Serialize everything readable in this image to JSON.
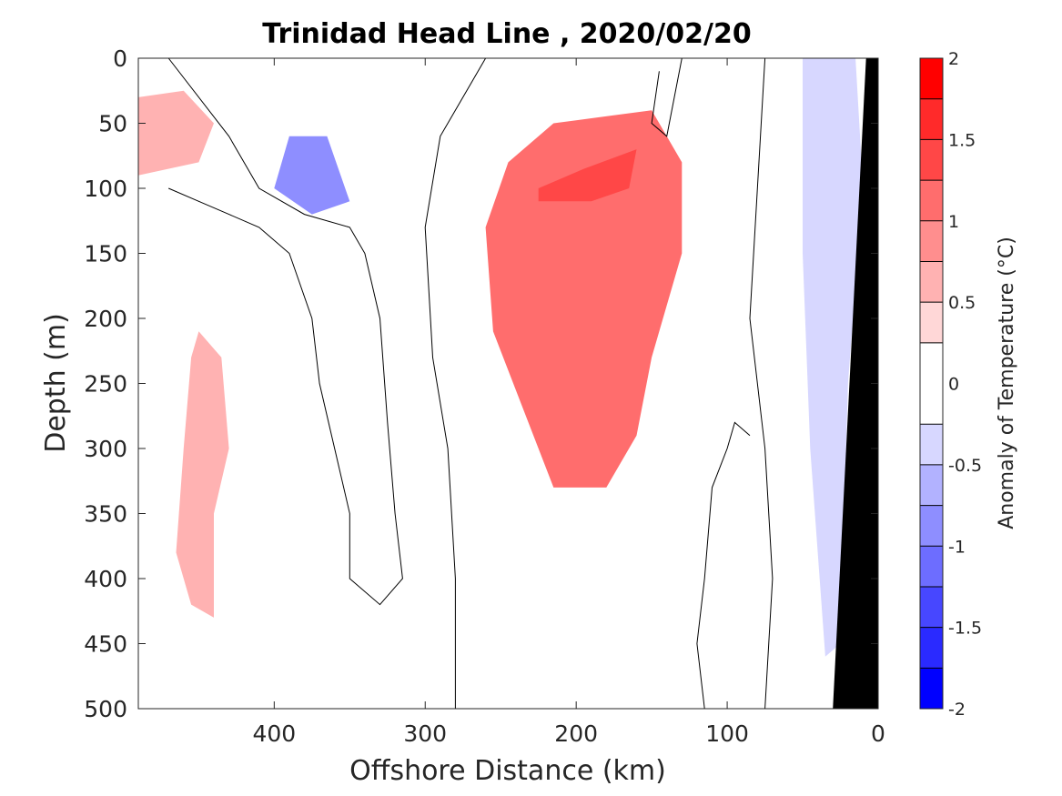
{
  "chart_data": {
    "type": "contour",
    "title": "Trinidad Head Line , 2020/02/20",
    "xlabel": "Offshore Distance (km)",
    "ylabel": "Depth (m)",
    "xlim": [
      490,
      0
    ],
    "ylim": [
      0,
      500
    ],
    "x_reversed": true,
    "y_reversed": true,
    "xticks": [
      400,
      300,
      200,
      100,
      0
    ],
    "xtick_labels": [
      "400",
      "300",
      "200",
      "100",
      "0"
    ],
    "yticks": [
      0,
      50,
      100,
      150,
      200,
      250,
      300,
      350,
      400,
      450,
      500
    ],
    "ytick_labels": [
      "0",
      "50",
      "100",
      "150",
      "200",
      "250",
      "300",
      "350",
      "400",
      "450",
      "500"
    ],
    "colorbar": {
      "label": "Anomaly of Temperature (°C)",
      "limits": [
        -2,
        2
      ],
      "levels": [
        -2,
        -1.75,
        -1.5,
        -1.25,
        -1,
        -0.75,
        -0.5,
        -0.25,
        0.25,
        0.5,
        0.75,
        1,
        1.25,
        1.5,
        1.75,
        2
      ],
      "tick_values": [
        2,
        1.5,
        1,
        0.5,
        0,
        -0.5,
        -1,
        -1.5,
        -2
      ],
      "tick_labels": [
        "2",
        "1.5",
        "1",
        "0.5",
        "0",
        "-0.5",
        "-1",
        "-1.5",
        "-2"
      ],
      "bands": [
        {
          "lo": 1.75,
          "hi": 2,
          "color": "#ff0000"
        },
        {
          "lo": 1.5,
          "hi": 1.75,
          "color": "#ff2a2a"
        },
        {
          "lo": 1.25,
          "hi": 1.5,
          "color": "#ff4747"
        },
        {
          "lo": 1,
          "hi": 1.25,
          "color": "#ff6d6d"
        },
        {
          "lo": 0.75,
          "hi": 1,
          "color": "#ff8e8e"
        },
        {
          "lo": 0.5,
          "hi": 0.75,
          "color": "#ffb2b2"
        },
        {
          "lo": 0.25,
          "hi": 0.5,
          "color": "#ffd7d7"
        },
        {
          "lo": -0.25,
          "hi": 0.25,
          "color": "#ffffff"
        },
        {
          "lo": -0.5,
          "hi": -0.25,
          "color": "#d7d7ff"
        },
        {
          "lo": -0.75,
          "hi": -0.5,
          "color": "#b2b2ff"
        },
        {
          "lo": -1,
          "hi": -0.75,
          "color": "#8e8eff"
        },
        {
          "lo": -1.25,
          "hi": -1,
          "color": "#6d6dff"
        },
        {
          "lo": -1.5,
          "hi": -1.25,
          "color": "#4747ff"
        },
        {
          "lo": -1.75,
          "hi": -1.5,
          "color": "#2a2aff"
        },
        {
          "lo": -2,
          "hi": -1.75,
          "color": "#0000ff"
        }
      ]
    },
    "regions": [
      {
        "name": "warm-core",
        "value": 1.0,
        "points": [
          [
            215,
            50
          ],
          [
            150,
            40
          ],
          [
            130,
            80
          ],
          [
            130,
            150
          ],
          [
            150,
            230
          ],
          [
            160,
            290
          ],
          [
            180,
            330
          ],
          [
            215,
            330
          ],
          [
            235,
            270
          ],
          [
            255,
            210
          ],
          [
            260,
            130
          ],
          [
            245,
            80
          ]
        ]
      },
      {
        "name": "warm-core-peak",
        "value": 1.4,
        "points": [
          [
            225,
            100
          ],
          [
            195,
            85
          ],
          [
            160,
            70
          ],
          [
            165,
            100
          ],
          [
            190,
            110
          ],
          [
            225,
            110
          ]
        ]
      },
      {
        "name": "warm-offshore",
        "value": 0.5,
        "points": [
          [
            490,
            30
          ],
          [
            460,
            25
          ],
          [
            440,
            50
          ],
          [
            450,
            80
          ],
          [
            490,
            90
          ]
        ]
      },
      {
        "name": "warm-offshore-deep",
        "value": 0.6,
        "points": [
          [
            450,
            210
          ],
          [
            435,
            230
          ],
          [
            430,
            300
          ],
          [
            440,
            350
          ],
          [
            440,
            430
          ],
          [
            455,
            420
          ],
          [
            465,
            380
          ],
          [
            460,
            300
          ],
          [
            455,
            230
          ]
        ]
      },
      {
        "name": "cool-offshore",
        "value": -0.8,
        "points": [
          [
            390,
            60
          ],
          [
            365,
            60
          ],
          [
            350,
            110
          ],
          [
            375,
            120
          ],
          [
            400,
            100
          ]
        ]
      },
      {
        "name": "cool-nearshore",
        "value": -0.4,
        "points": [
          [
            50,
            0
          ],
          [
            15,
            0
          ],
          [
            10,
            100
          ],
          [
            20,
            250
          ],
          [
            25,
            450
          ],
          [
            35,
            460
          ],
          [
            45,
            300
          ],
          [
            50,
            150
          ]
        ]
      }
    ],
    "zero_contours": [
      [
        [
          470,
          0
        ],
        [
          430,
          60
        ],
        [
          410,
          100
        ],
        [
          380,
          120
        ],
        [
          350,
          130
        ],
        [
          340,
          150
        ],
        [
          330,
          200
        ],
        [
          325,
          280
        ],
        [
          320,
          350
        ],
        [
          315,
          400
        ],
        [
          330,
          420
        ],
        [
          350,
          400
        ],
        [
          350,
          350
        ],
        [
          360,
          300
        ],
        [
          370,
          250
        ],
        [
          375,
          200
        ],
        [
          390,
          150
        ],
        [
          410,
          130
        ],
        [
          430,
          120
        ],
        [
          450,
          110
        ],
        [
          470,
          100
        ]
      ],
      [
        [
          260,
          0
        ],
        [
          290,
          60
        ],
        [
          300,
          130
        ],
        [
          295,
          230
        ],
        [
          285,
          300
        ],
        [
          280,
          400
        ],
        [
          280,
          500
        ]
      ],
      [
        [
          130,
          0
        ],
        [
          140,
          60
        ],
        [
          150,
          50
        ],
        [
          145,
          10
        ]
      ],
      [
        [
          75,
          0
        ],
        [
          80,
          100
        ],
        [
          85,
          200
        ],
        [
          75,
          300
        ],
        [
          70,
          400
        ],
        [
          75,
          500
        ]
      ],
      [
        [
          85,
          290
        ],
        [
          95,
          280
        ],
        [
          100,
          300
        ],
        [
          110,
          330
        ],
        [
          115,
          400
        ],
        [
          120,
          450
        ],
        [
          115,
          500
        ]
      ]
    ],
    "bathymetry": {
      "color": "#000000",
      "points": [
        [
          0,
          0
        ],
        [
          0,
          500
        ],
        [
          30,
          500
        ],
        [
          8,
          0
        ]
      ]
    }
  }
}
